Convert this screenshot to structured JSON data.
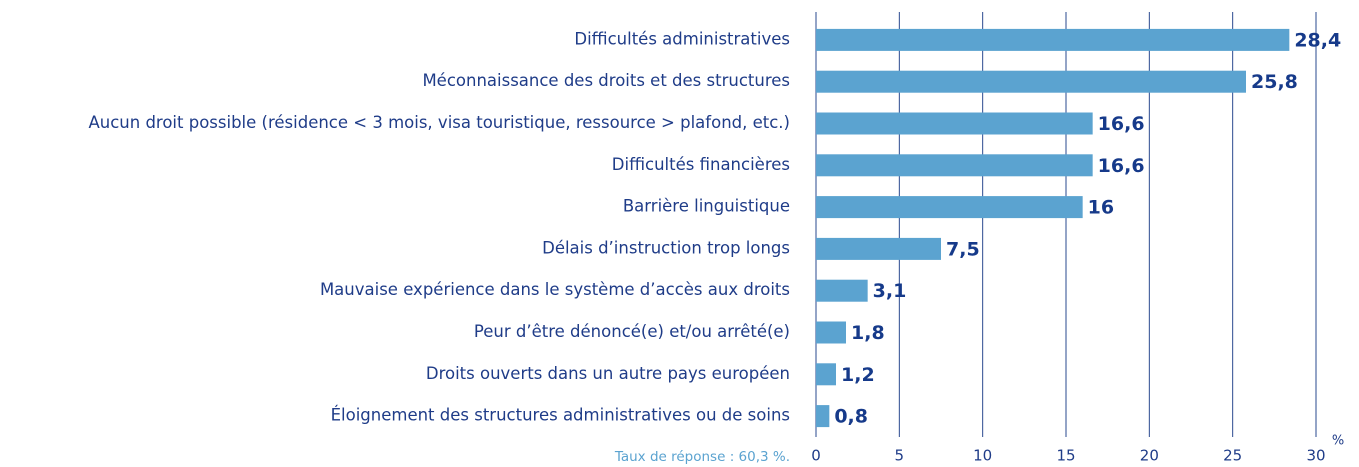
{
  "chart_data": {
    "type": "bar",
    "orientation": "horizontal",
    "categories": [
      "Difficultés administratives",
      "Méconnaissance des droits et des structures",
      "Aucun droit possible (résidence < 3 mois, visa touristique, ressource > plafond, etc.)",
      "Difficultés financières",
      "Barrière linguistique",
      "Délais d’instruction trop longs",
      "Mauvaise expérience dans le système d’accès aux droits",
      "Peur d’être dénoncé(e) et/ou arrêté(e)",
      "Droits ouverts dans un autre pays européen",
      "Éloignement des structures administratives ou de soins"
    ],
    "values": [
      28.4,
      25.8,
      16.6,
      16.6,
      16,
      7.5,
      3.1,
      1.8,
      1.2,
      0.8
    ],
    "value_labels": [
      "28,4",
      "25,8",
      "16,6",
      "16,6",
      "16",
      "7,5",
      "3,1",
      "1,8",
      "1,2",
      "0,8"
    ],
    "color": "#5ba3d0",
    "xlim": [
      0,
      30
    ],
    "xticks": [
      0,
      5,
      10,
      15,
      20,
      25,
      30
    ],
    "grid": true,
    "xlabel": "%",
    "note": "Taux de réponse : 60,3 %."
  }
}
